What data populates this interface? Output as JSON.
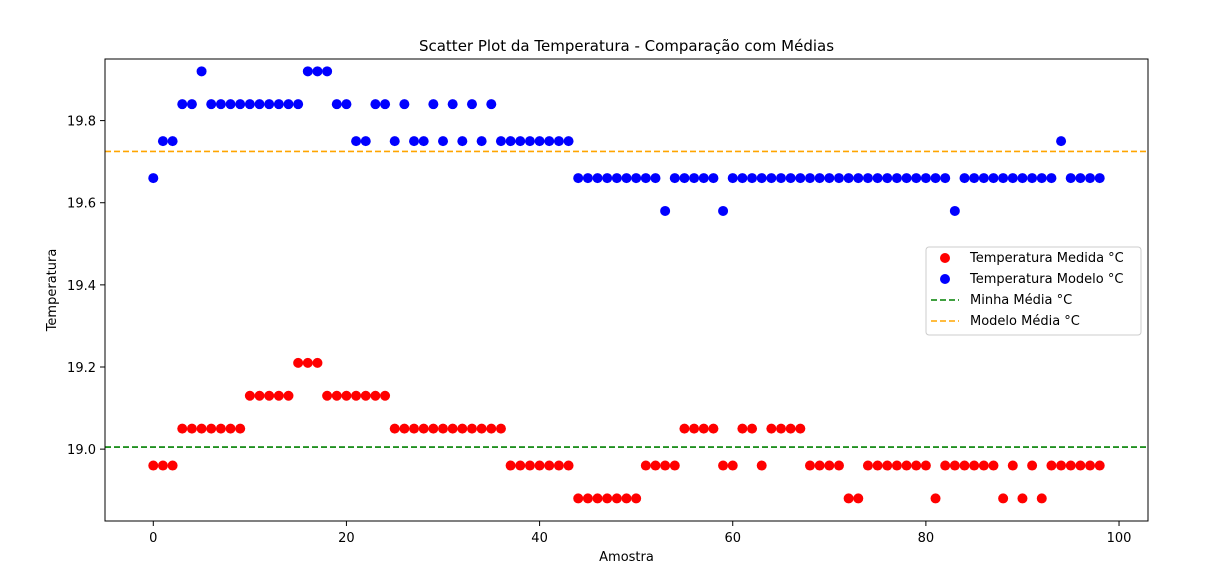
{
  "chart_data": {
    "type": "scatter",
    "title": "Scatter Plot da Temperatura - Comparação com Médias",
    "xlabel": "Amostra",
    "ylabel": "Temperatura",
    "xlim": [
      -5,
      103
    ],
    "ylim": [
      18.825,
      19.95
    ],
    "x_ticks": [
      0,
      20,
      40,
      60,
      80,
      100
    ],
    "x_tick_labels": [
      "0",
      "20",
      "40",
      "60",
      "80",
      "100"
    ],
    "y_ticks": [
      19.0,
      19.2,
      19.4,
      19.6,
      19.8
    ],
    "y_tick_labels": [
      "19.0",
      "19.2",
      "19.4",
      "19.6",
      "19.8"
    ],
    "grid": false,
    "legend_position": "center-right",
    "series": [
      {
        "name": "Temperatura Medida °C",
        "kind": "scatter",
        "color": "#ff0000",
        "x": [
          0,
          1,
          2,
          3,
          4,
          5,
          6,
          7,
          8,
          9,
          10,
          11,
          12,
          13,
          14,
          15,
          16,
          17,
          18,
          19,
          20,
          21,
          22,
          23,
          24,
          25,
          26,
          27,
          28,
          29,
          30,
          31,
          32,
          33,
          34,
          35,
          36,
          37,
          38,
          39,
          40,
          41,
          42,
          43,
          44,
          45,
          46,
          47,
          48,
          49,
          50,
          51,
          52,
          53,
          54,
          55,
          56,
          57,
          58,
          59,
          60,
          61,
          62,
          63,
          64,
          65,
          66,
          67,
          68,
          69,
          70,
          71,
          72,
          73,
          74,
          75,
          76,
          77,
          78,
          79,
          80,
          81,
          82,
          83,
          84,
          85,
          86,
          87,
          88,
          89,
          90,
          91,
          92,
          93,
          94,
          95,
          96,
          97,
          98
        ],
        "y": [
          18.96,
          18.96,
          18.96,
          19.05,
          19.05,
          19.05,
          19.05,
          19.05,
          19.05,
          19.05,
          19.13,
          19.13,
          19.13,
          19.13,
          19.13,
          19.21,
          19.21,
          19.21,
          19.13,
          19.13,
          19.13,
          19.13,
          19.13,
          19.13,
          19.13,
          19.05,
          19.05,
          19.05,
          19.05,
          19.05,
          19.05,
          19.05,
          19.05,
          19.05,
          19.05,
          19.05,
          19.05,
          18.96,
          18.96,
          18.96,
          18.96,
          18.96,
          18.96,
          18.96,
          18.88,
          18.88,
          18.88,
          18.88,
          18.88,
          18.88,
          18.88,
          18.96,
          18.96,
          18.96,
          18.96,
          19.05,
          19.05,
          19.05,
          19.05,
          18.96,
          18.96,
          19.05,
          19.05,
          18.96,
          19.05,
          19.05,
          19.05,
          19.05,
          18.96,
          18.96,
          18.96,
          18.96,
          18.88,
          18.88,
          18.96,
          18.96,
          18.96,
          18.96,
          18.96,
          18.96,
          18.96,
          18.88,
          18.96,
          18.96,
          18.96,
          18.96,
          18.96,
          18.96,
          18.88,
          18.96,
          18.88,
          18.96,
          18.88,
          18.96,
          18.96,
          18.96,
          18.96,
          18.96,
          18.96
        ]
      },
      {
        "name": "Temperatura Modelo °C",
        "kind": "scatter",
        "color": "#0000ff",
        "x": [
          0,
          1,
          2,
          3,
          4,
          5,
          6,
          7,
          8,
          9,
          10,
          11,
          12,
          13,
          14,
          15,
          16,
          17,
          18,
          19,
          20,
          21,
          22,
          23,
          24,
          25,
          26,
          27,
          28,
          29,
          30,
          31,
          32,
          33,
          34,
          35,
          36,
          37,
          38,
          39,
          40,
          41,
          42,
          43,
          44,
          45,
          46,
          47,
          48,
          49,
          50,
          51,
          52,
          53,
          54,
          55,
          56,
          57,
          58,
          59,
          60,
          61,
          62,
          63,
          64,
          65,
          66,
          67,
          68,
          69,
          70,
          71,
          72,
          73,
          74,
          75,
          76,
          77,
          78,
          79,
          80,
          81,
          82,
          83,
          84,
          85,
          86,
          87,
          88,
          89,
          90,
          91,
          92,
          93,
          94,
          95,
          96,
          97,
          98
        ],
        "y": [
          19.66,
          19.75,
          19.75,
          19.84,
          19.84,
          19.92,
          19.84,
          19.84,
          19.84,
          19.84,
          19.84,
          19.84,
          19.84,
          19.84,
          19.84,
          19.84,
          19.92,
          19.92,
          19.92,
          19.84,
          19.84,
          19.75,
          19.75,
          19.84,
          19.84,
          19.75,
          19.84,
          19.75,
          19.75,
          19.84,
          19.75,
          19.84,
          19.75,
          19.84,
          19.75,
          19.84,
          19.75,
          19.75,
          19.75,
          19.75,
          19.75,
          19.75,
          19.75,
          19.75,
          19.66,
          19.66,
          19.66,
          19.66,
          19.66,
          19.66,
          19.66,
          19.66,
          19.66,
          19.58,
          19.66,
          19.66,
          19.66,
          19.66,
          19.66,
          19.58,
          19.66,
          19.66,
          19.66,
          19.66,
          19.66,
          19.66,
          19.66,
          19.66,
          19.66,
          19.66,
          19.66,
          19.66,
          19.66,
          19.66,
          19.66,
          19.66,
          19.66,
          19.66,
          19.66,
          19.66,
          19.66,
          19.66,
          19.66,
          19.58,
          19.66,
          19.66,
          19.66,
          19.66,
          19.66,
          19.66,
          19.66,
          19.66,
          19.66,
          19.66,
          19.75,
          19.66,
          19.66,
          19.66,
          19.66
        ]
      },
      {
        "name": "Minha Média °C",
        "kind": "hline",
        "color": "#008000",
        "y": 19.005
      },
      {
        "name": "Modelo Média °C",
        "kind": "hline",
        "color": "#ffa500",
        "y": 19.725
      }
    ]
  }
}
